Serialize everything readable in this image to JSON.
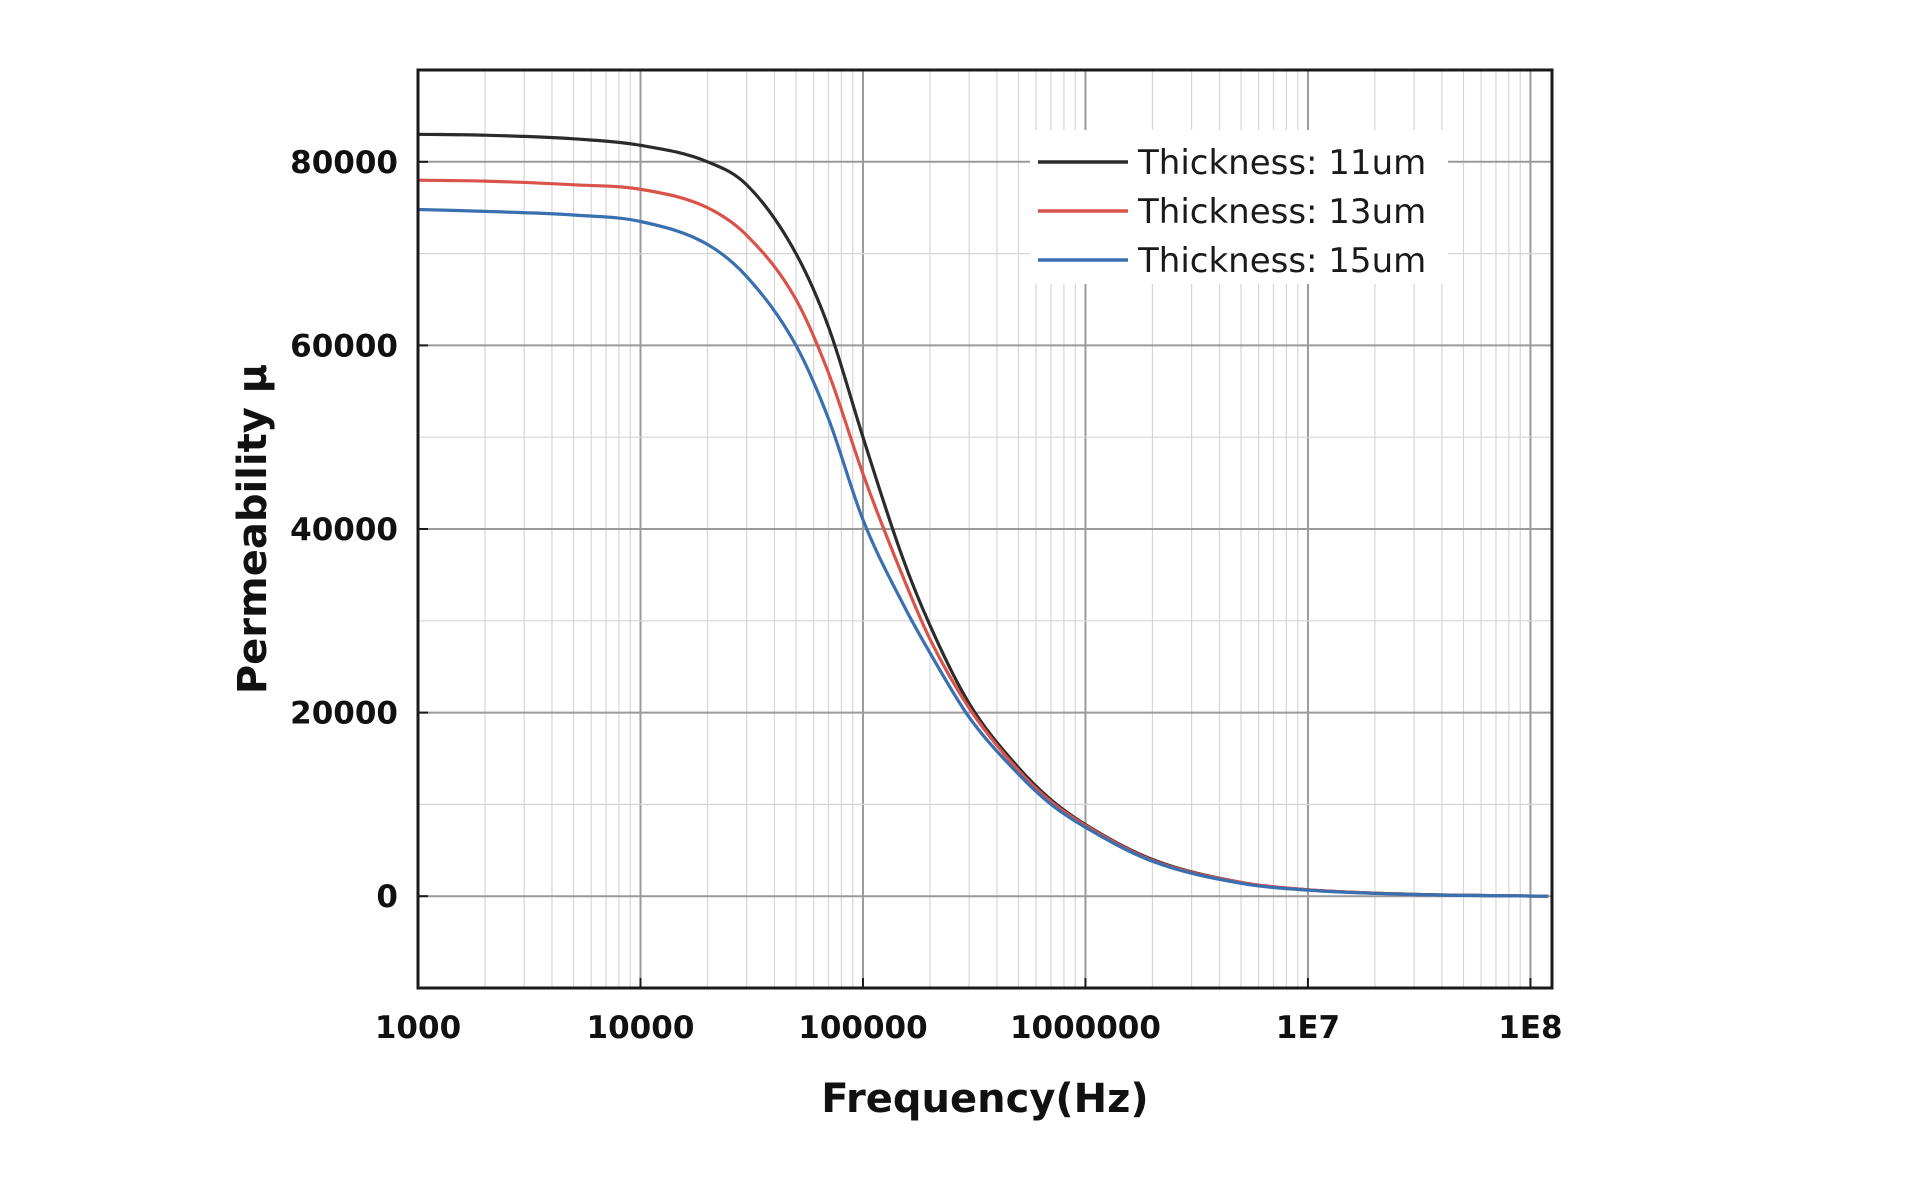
{
  "chart_data": {
    "type": "line",
    "title": "",
    "xlabel": "Frequency(Hz)",
    "ylabel": "Permeability μ",
    "xscale": "log",
    "xlim": [
      1000,
      125000000
    ],
    "ylim": [
      -10000,
      90000
    ],
    "grid": true,
    "legend_position": "top-right",
    "x_ticks": [
      {
        "value": 1000,
        "label": "1000"
      },
      {
        "value": 10000,
        "label": "10000"
      },
      {
        "value": 100000,
        "label": "100000"
      },
      {
        "value": 1000000,
        "label": "1000000"
      },
      {
        "value": 10000000,
        "label": "1E7"
      },
      {
        "value": 100000000,
        "label": "1E8"
      }
    ],
    "y_ticks": [
      {
        "value": 0,
        "label": "0"
      },
      {
        "value": 20000,
        "label": "20000"
      },
      {
        "value": 40000,
        "label": "40000"
      },
      {
        "value": 60000,
        "label": "60000"
      },
      {
        "value": 80000,
        "label": "80000"
      }
    ],
    "x": [
      1000,
      2000,
      5000,
      10000,
      20000,
      30000,
      50000,
      70000,
      100000,
      150000,
      200000,
      300000,
      500000,
      700000,
      1000000,
      2000000,
      5000000,
      10000000,
      30000000,
      120000000
    ],
    "series": [
      {
        "name": "Thickness: 11um",
        "color": "#2b2b2b",
        "values": [
          83000,
          82900,
          82500,
          81800,
          80000,
          77500,
          70000,
          62000,
          50000,
          37000,
          29500,
          21000,
          14000,
          10500,
          7800,
          4000,
          1500,
          700,
          200,
          0
        ]
      },
      {
        "name": "Thickness: 13um",
        "color": "#d9534a",
        "values": [
          78000,
          77900,
          77500,
          77000,
          75000,
          72000,
          65000,
          57000,
          46000,
          35000,
          28000,
          20500,
          13700,
          10300,
          7700,
          3900,
          1500,
          700,
          200,
          0
        ]
      },
      {
        "name": "Thickness: 15um",
        "color": "#3a6fb0",
        "values": [
          74800,
          74600,
          74200,
          73500,
          71000,
          67500,
          60000,
          52000,
          41000,
          32000,
          26500,
          19500,
          13300,
          10000,
          7500,
          3800,
          1400,
          650,
          180,
          0
        ]
      }
    ]
  }
}
